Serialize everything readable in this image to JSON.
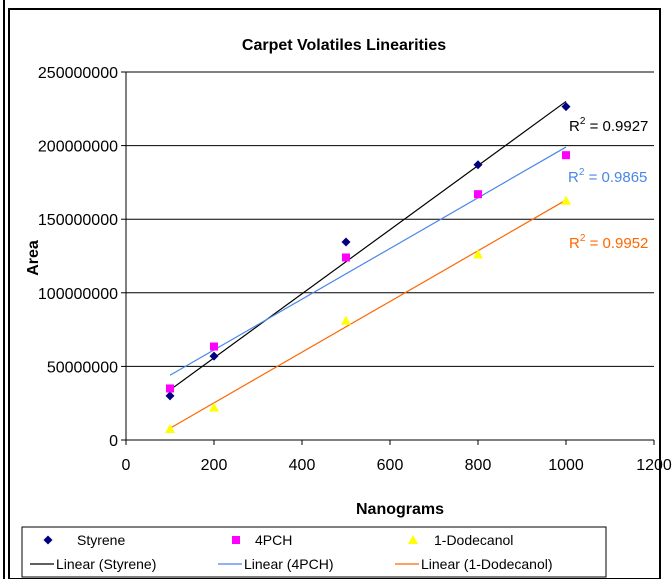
{
  "chart_data": {
    "type": "scatter",
    "title": "Carpet Volatiles  Linearities",
    "xlabel": "Nanograms",
    "ylabel": "Area",
    "xlim": [
      0,
      1200
    ],
    "ylim": [
      0,
      250000000
    ],
    "x_ticks": [
      "0",
      "200",
      "400",
      "600",
      "800",
      "1000",
      "1200"
    ],
    "y_ticks": [
      "0",
      "50000000",
      "100000000",
      "150000000",
      "200000000",
      "250000000"
    ],
    "grid": "horizontal",
    "legend_position": "bottom",
    "series": [
      {
        "name": "Styrene",
        "marker": "diamond",
        "color": "#000080",
        "points": [
          [
            100,
            30000000
          ],
          [
            200,
            57000000
          ],
          [
            500,
            134500000
          ],
          [
            800,
            187000000
          ],
          [
            1000,
            226500000
          ]
        ],
        "trendline": {
          "name": "Linear (Styrene)",
          "color": "#000000",
          "from": [
            100,
            34000000
          ],
          "to": [
            1000,
            230000000
          ],
          "r2_label": "R",
          "r2_exp": "2",
          "r2_value": " = 0.9927"
        }
      },
      {
        "name": "4PCH",
        "marker": "square",
        "color": "#FF00FF",
        "points": [
          [
            100,
            35000000
          ],
          [
            200,
            63500000
          ],
          [
            500,
            124000000
          ],
          [
            800,
            167000000
          ],
          [
            1000,
            193500000
          ]
        ],
        "trendline": {
          "name": "Linear (4PCH)",
          "color": "#4A86E8",
          "from": [
            100,
            44000000
          ],
          "to": [
            1000,
            199000000
          ],
          "r2_label": "R",
          "r2_exp": "2",
          "r2_value": " = 0.9865"
        }
      },
      {
        "name": "1-Dodecanol",
        "marker": "triangle",
        "color": "#FFFF00",
        "points": [
          [
            100,
            7500000
          ],
          [
            200,
            22000000
          ],
          [
            500,
            81000000
          ],
          [
            800,
            126000000
          ],
          [
            1000,
            162500000
          ]
        ],
        "trendline": {
          "name": "Linear (1-Dodecanol)",
          "color": "#FF6600",
          "from": [
            100,
            8000000
          ],
          "to": [
            1000,
            163000000
          ],
          "r2_label": "R",
          "r2_exp": "2",
          "r2_value": " = 0.9952"
        }
      }
    ]
  }
}
